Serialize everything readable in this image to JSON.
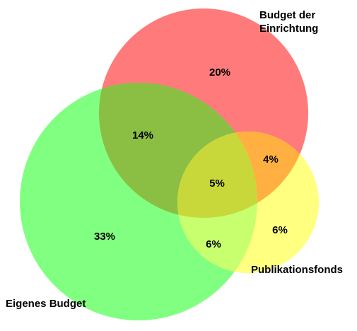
{
  "sets": [
    {
      "id": "einrichtung",
      "label_line1": "Budget der",
      "label_line2": "Einrichtung",
      "color": "#ff7a7a"
    },
    {
      "id": "eigenes",
      "label": "Eigenes Budget",
      "color": "#80ff80"
    },
    {
      "id": "publikationsfonds",
      "label": "Publikationsfonds",
      "color": "#ffff80"
    }
  ],
  "regions": {
    "einrichtung_only": "20%",
    "eigenes_einrichtung": "14%",
    "einrichtung_publikationsfonds": "4%",
    "all_three": "5%",
    "eigenes_only": "33%",
    "eigenes_publikationsfonds": "6%",
    "publikationsfonds_only": "6%"
  },
  "overlap_colors": {
    "red_green": "#8abf44",
    "red_yellow": "#ffb040",
    "green_yellow": "#c8ff6e",
    "all": "#c8d83a"
  }
}
